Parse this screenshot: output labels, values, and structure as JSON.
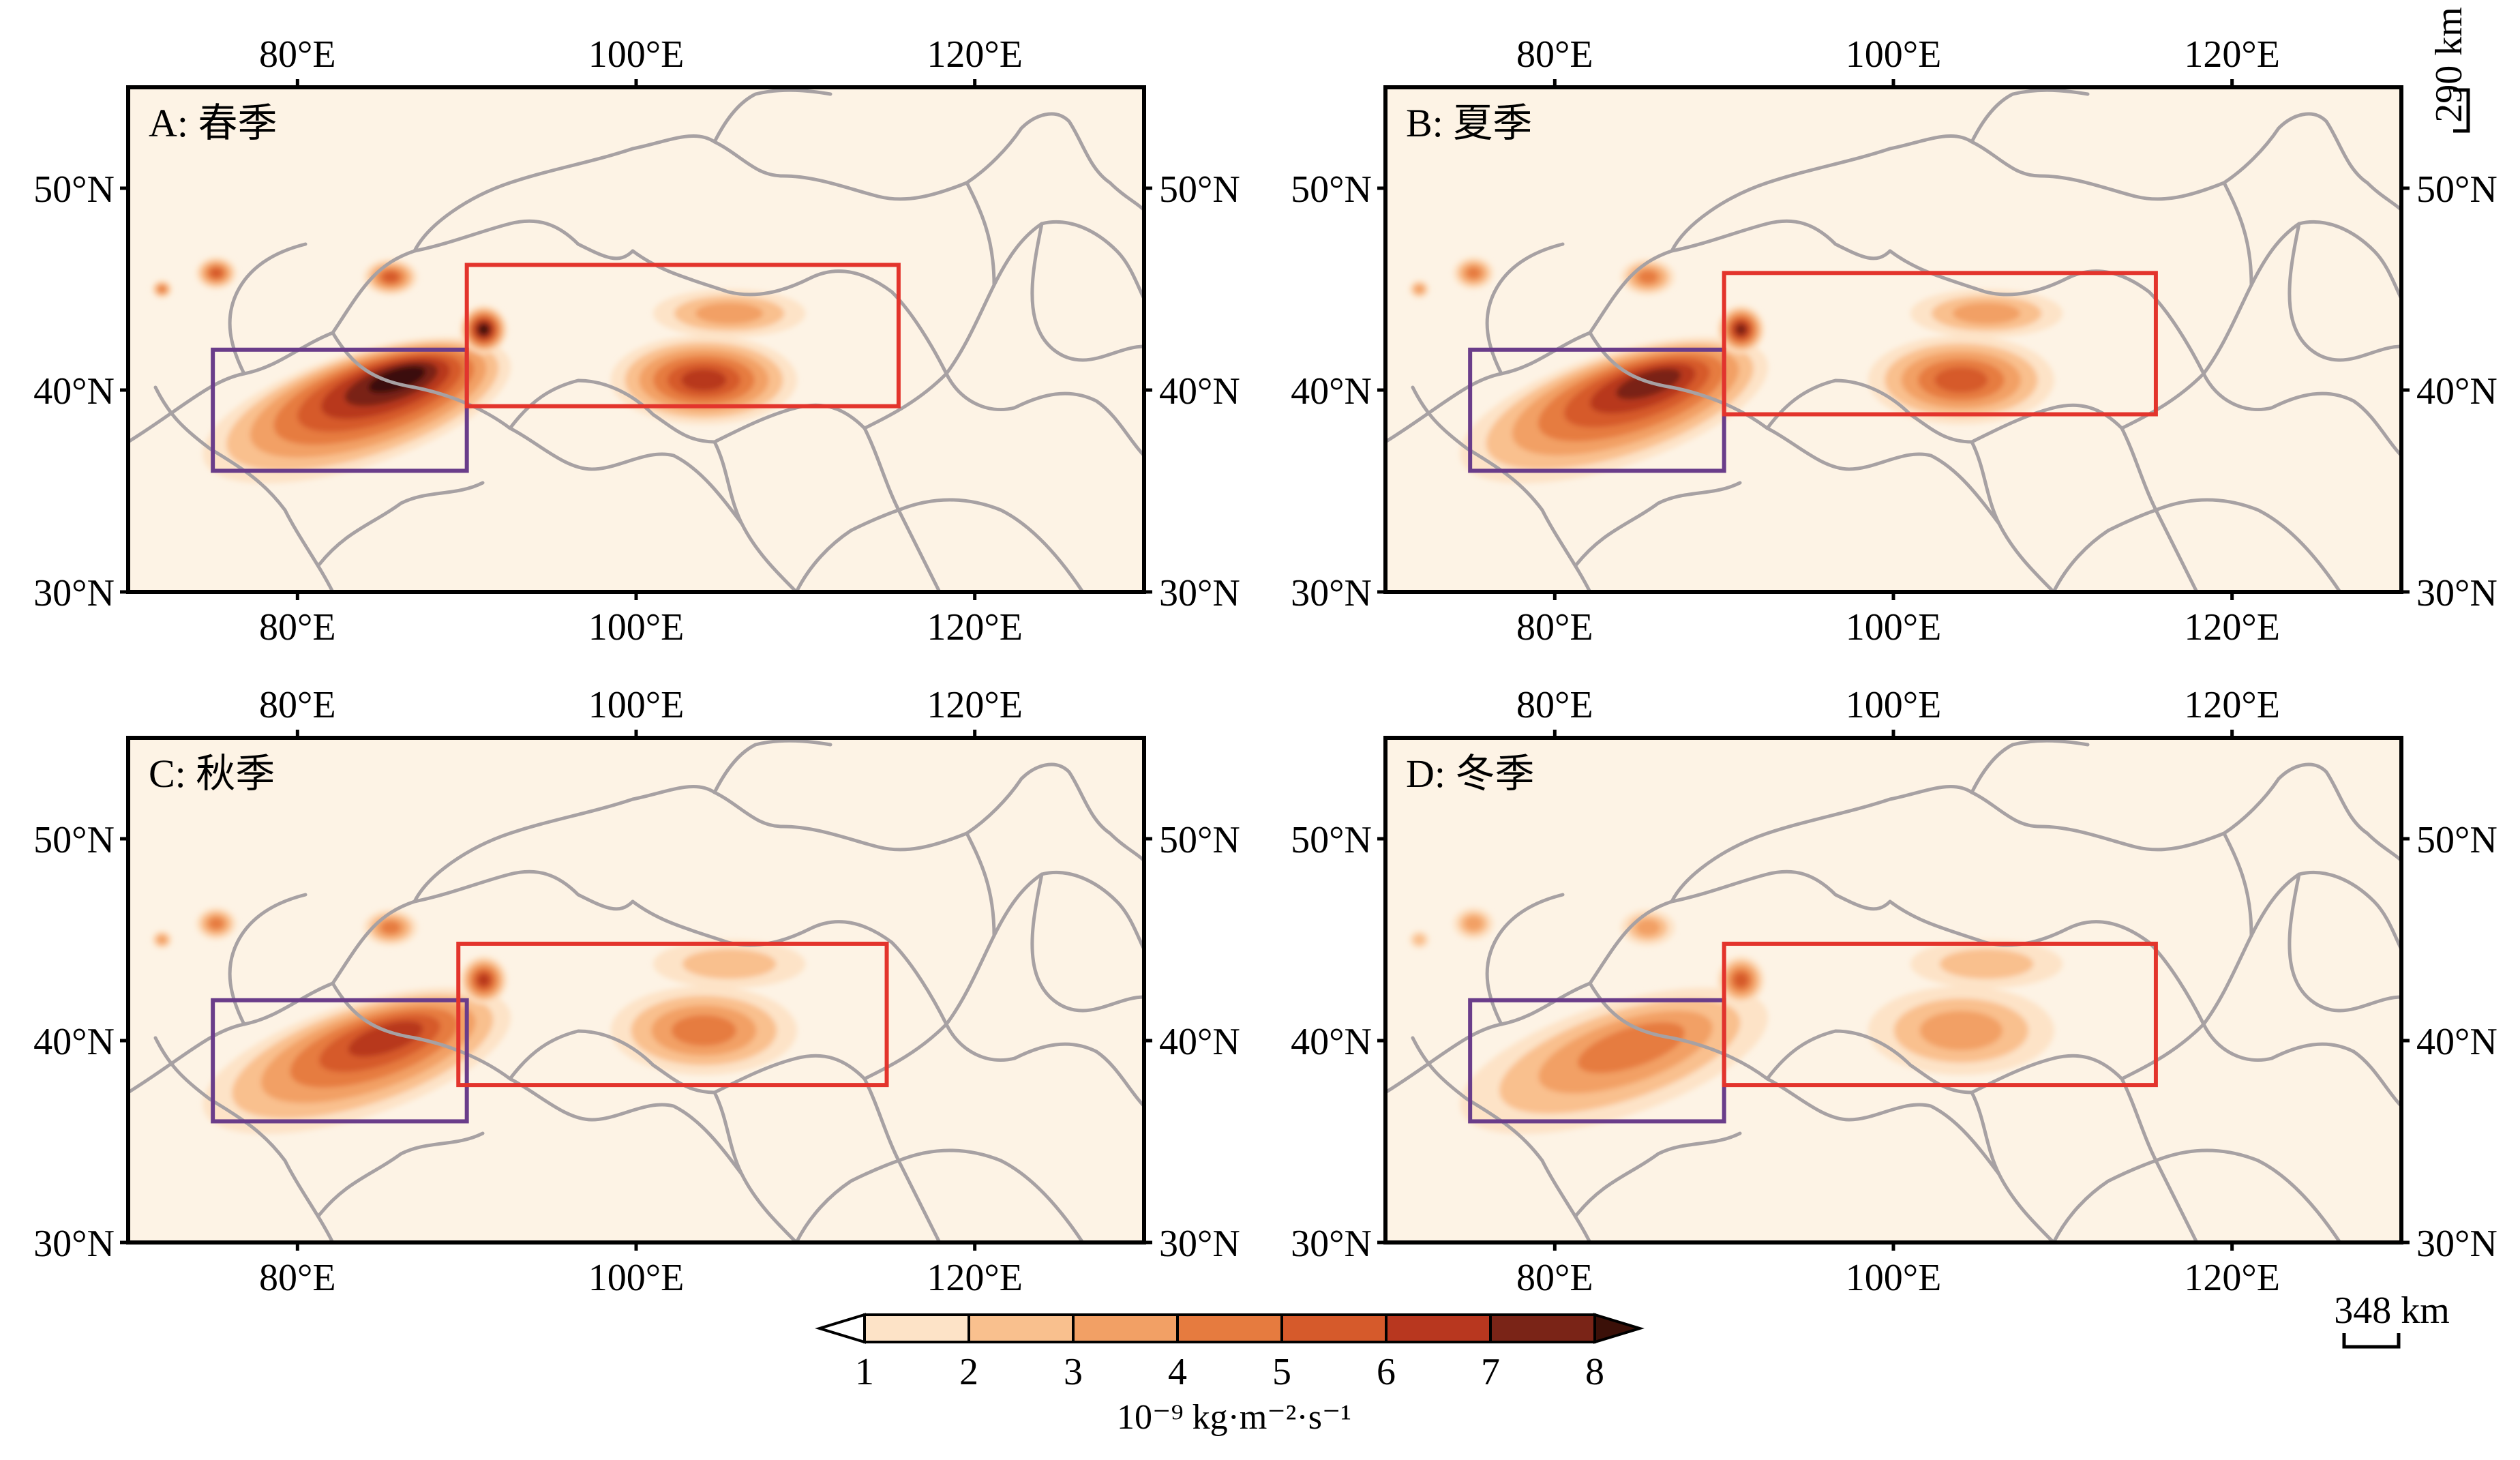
{
  "panels": [
    {
      "label": "A: 春季",
      "season": "spring",
      "intensity": 1.0,
      "east_box_lat": [
        39.2,
        46.2
      ],
      "east_box_lon": [
        90,
        115.5
      ]
    },
    {
      "label": "B: 夏季",
      "season": "summer",
      "intensity": 0.85,
      "east_box_lat": [
        38.8,
        45.8
      ],
      "east_box_lon": [
        90,
        115.5
      ]
    },
    {
      "label": "C: 秋季",
      "season": "autumn",
      "intensity": 0.7,
      "east_box_lat": [
        37.8,
        44.8
      ],
      "east_box_lon": [
        89.5,
        114.8
      ]
    },
    {
      "label": "D: 冬季",
      "season": "winter",
      "intensity": 0.55,
      "east_box_lat": [
        37.8,
        44.8
      ],
      "east_box_lon": [
        90,
        115.5
      ]
    }
  ],
  "axes": {
    "lon_ticks": [
      "80°E",
      "100°E",
      "120°E"
    ],
    "lon_values": [
      80,
      100,
      120
    ],
    "lat_ticks": [
      "30°N",
      "40°N",
      "50°N"
    ],
    "lat_values": [
      30,
      40,
      50
    ],
    "lon_range": [
      70,
      130
    ],
    "lat_range": [
      30,
      55
    ]
  },
  "boxes": {
    "west": {
      "color": "#6a3d8a",
      "lon": [
        75,
        90
      ],
      "lat": [
        36,
        42
      ]
    },
    "east_color": "#e3342c"
  },
  "scale_bars": {
    "horizontal": "348 km",
    "vertical": "290 km"
  },
  "colorbar": {
    "ticks": [
      "1",
      "2",
      "3",
      "4",
      "5",
      "6",
      "7",
      "8"
    ],
    "colors": [
      "#fde3c7",
      "#f9c08e",
      "#f2a065",
      "#e67b3f",
      "#d65a2b",
      "#b8371f",
      "#7a2417"
    ],
    "under_color": "#ffffff",
    "over_color": "#3b1008",
    "unit": "10⁻⁹ kg·m⁻²·s⁻¹"
  },
  "map_colors": {
    "background": "#fdf3e5",
    "borders": "#a7a1a3",
    "frame": "#000000"
  }
}
